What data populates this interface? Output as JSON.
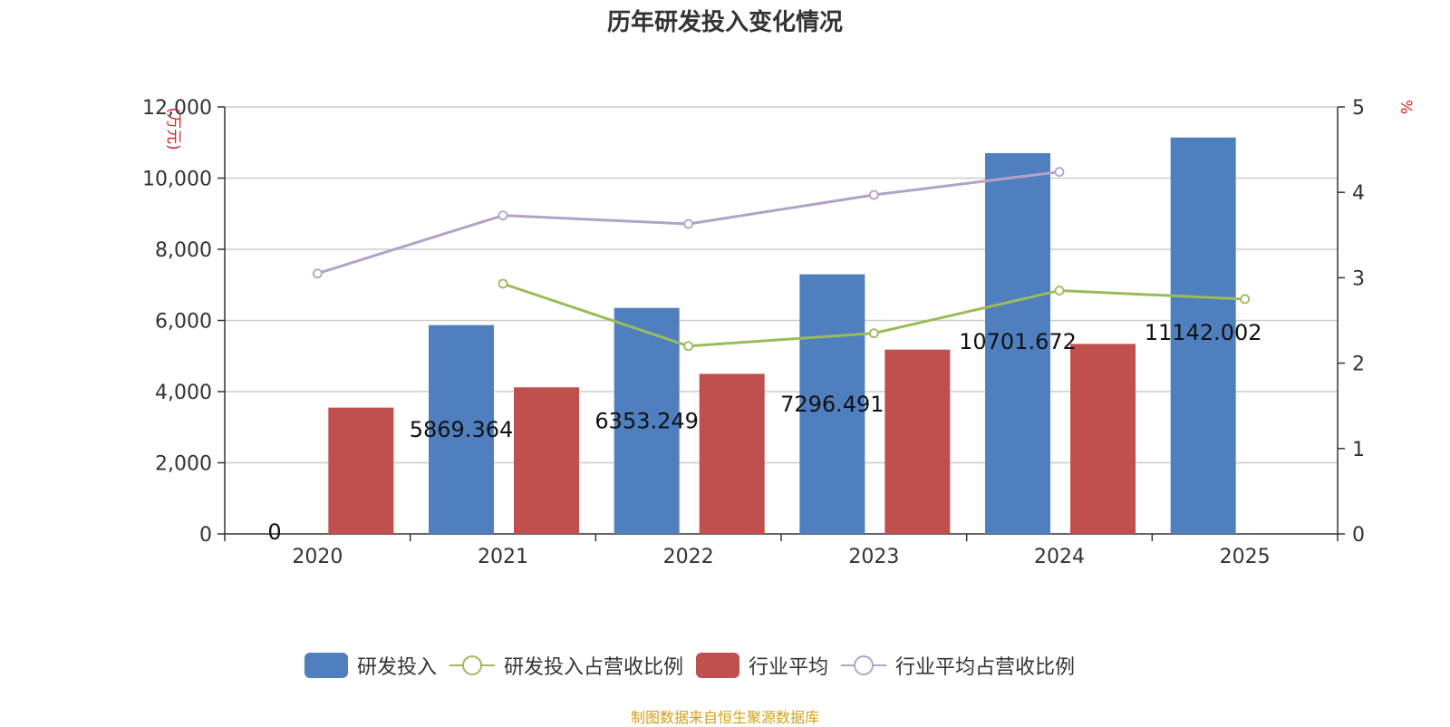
{
  "title": "历年研发投入变化情况",
  "source": "制图数据来自恒生聚源数据库",
  "chart_data": {
    "type": "bar",
    "categories": [
      "2020",
      "2021",
      "2022",
      "2023",
      "2024",
      "2025"
    ],
    "left_axis": {
      "unit_label": "(万元)",
      "ylim": [
        0,
        12000
      ],
      "ticks": [
        0,
        2000,
        4000,
        6000,
        8000,
        10000,
        12000
      ],
      "tick_labels": [
        "0",
        "2,000",
        "4,000",
        "6,000",
        "8,000",
        "10,000",
        "12,000"
      ]
    },
    "right_axis": {
      "unit_label": "%",
      "ylim": [
        0,
        5
      ],
      "ticks": [
        0,
        1,
        2,
        3,
        4,
        5
      ],
      "tick_labels": [
        "0",
        "1",
        "2",
        "3",
        "4",
        "5"
      ]
    },
    "series": [
      {
        "name": "研发投入",
        "type": "bar",
        "axis": "left",
        "color": "#4f7fbf",
        "values": [
          0,
          5869.364,
          6353.249,
          7296.491,
          10701.672,
          11142.002
        ],
        "labels": [
          "0",
          "5869.364",
          "6353.249",
          "7296.491",
          "10701.672",
          "11142.002"
        ]
      },
      {
        "name": "行业平均",
        "type": "bar",
        "axis": "left",
        "color": "#c0504d",
        "values": [
          3550,
          4120,
          4500,
          5180,
          5340,
          null
        ]
      },
      {
        "name": "研发投入占营收比例",
        "type": "line",
        "axis": "right",
        "color": "#9bbb59",
        "values": [
          null,
          2.93,
          2.2,
          2.35,
          2.85,
          2.75
        ]
      },
      {
        "name": "行业平均占营收比例",
        "type": "line",
        "axis": "right",
        "color": "#b3a2c7",
        "values": [
          3.05,
          3.73,
          3.63,
          3.97,
          4.24,
          null
        ]
      }
    ],
    "grid": true,
    "legend_position": "bottom"
  }
}
